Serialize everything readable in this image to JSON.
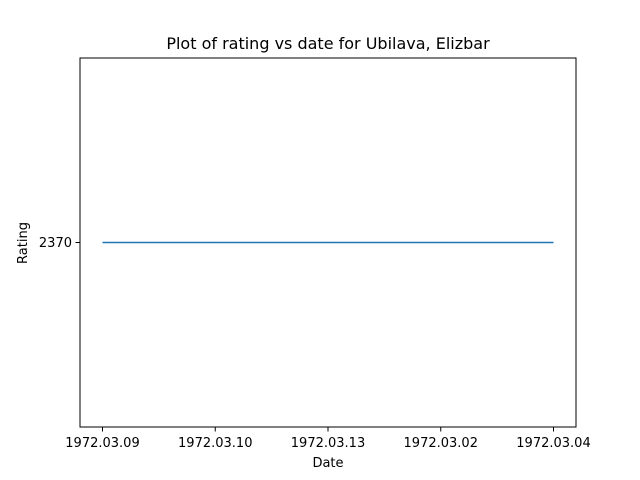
{
  "chart_data": {
    "type": "line",
    "title": "Plot of rating vs date for Ubilava, Elizbar",
    "xlabel": "Date",
    "ylabel": "Rating",
    "categories": [
      "1972.03.09",
      "1972.03.10",
      "1972.03.13",
      "1972.03.02",
      "1972.03.04"
    ],
    "series": [
      {
        "values": [
          2370,
          2370,
          2370,
          2370,
          2370
        ],
        "color": "#1f77b4"
      }
    ],
    "yticks": [
      2370
    ],
    "ylim": [
      2369.9,
      2370.1
    ],
    "grid": false
  }
}
